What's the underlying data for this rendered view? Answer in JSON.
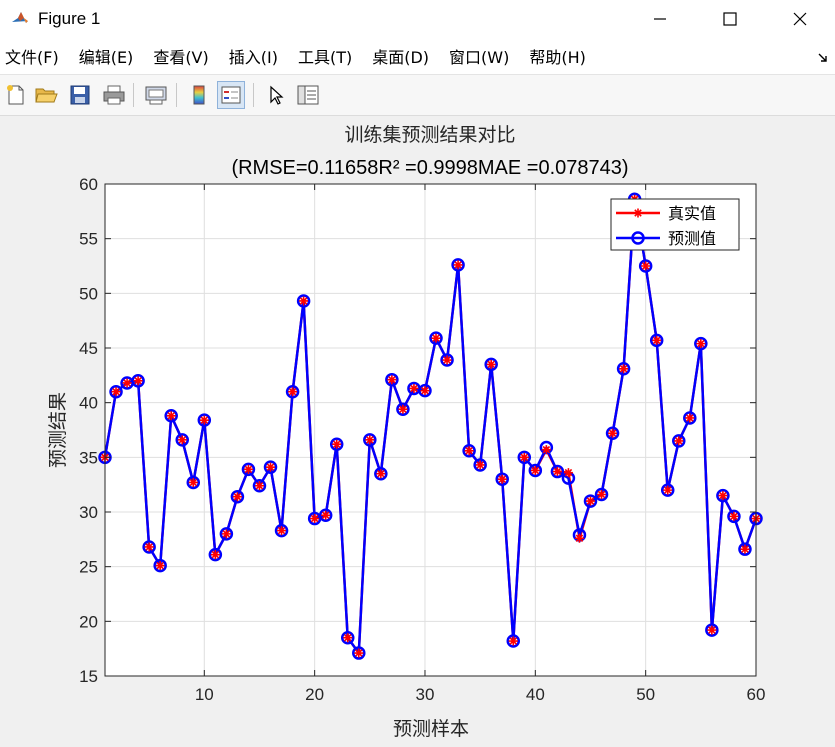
{
  "window": {
    "title": "Figure 1"
  },
  "menu": [
    "文件(F)",
    "编辑(E)",
    "查看(V)",
    "插入(I)",
    "工具(T)",
    "桌面(D)",
    "窗口(W)",
    "帮助(H)"
  ],
  "toolbar": {
    "icons": [
      "new-file-icon",
      "open-folder-icon",
      "save-icon",
      "print-icon",
      "print-preview-icon",
      "colorbar-icon",
      "legend-icon",
      "pointer-icon",
      "property-inspector-icon"
    ]
  },
  "chart_data": {
    "type": "line",
    "title": "训练集预测结果对比",
    "subtitle": "(RMSE=0.11658R² =0.9998MAE =0.078743)",
    "xlabel": "预测样本",
    "ylabel": "预测结果",
    "xlim": [
      1,
      60
    ],
    "ylim": [
      15,
      60
    ],
    "xticks": [
      10,
      20,
      30,
      40,
      50,
      60
    ],
    "yticks": [
      15,
      20,
      25,
      30,
      35,
      40,
      45,
      50,
      55,
      60
    ],
    "grid": true,
    "legend_position": "top-right",
    "x": [
      1,
      2,
      3,
      4,
      5,
      6,
      7,
      8,
      9,
      10,
      11,
      12,
      13,
      14,
      15,
      16,
      17,
      18,
      19,
      20,
      21,
      22,
      23,
      24,
      25,
      26,
      27,
      28,
      29,
      30,
      31,
      32,
      33,
      34,
      35,
      36,
      37,
      38,
      39,
      40,
      41,
      42,
      43,
      44,
      45,
      46,
      47,
      48,
      49,
      50,
      51,
      52,
      53,
      54,
      55,
      56,
      57,
      58,
      59,
      60
    ],
    "series": [
      {
        "name": "真实值",
        "color": "#ff0000",
        "marker": "star",
        "values": [
          35.0,
          41.0,
          41.8,
          42.0,
          26.8,
          25.1,
          38.8,
          36.6,
          32.7,
          38.4,
          26.1,
          28.0,
          31.4,
          33.9,
          32.4,
          34.1,
          28.3,
          41.0,
          49.3,
          29.4,
          29.7,
          36.2,
          18.5,
          17.1,
          36.6,
          33.5,
          42.1,
          39.4,
          41.3,
          41.1,
          45.9,
          43.9,
          52.6,
          35.6,
          34.3,
          43.5,
          33.0,
          18.2,
          35.0,
          33.8,
          35.7,
          33.7,
          33.6,
          27.6,
          31.0,
          31.6,
          37.2,
          43.1,
          58.6,
          52.5,
          45.7,
          32.0,
          36.5,
          38.6,
          45.4,
          19.2,
          31.5,
          29.6,
          26.6,
          29.4
        ]
      },
      {
        "name": "预测值",
        "color": "#0000ff",
        "marker": "circle",
        "values": [
          35.0,
          41.0,
          41.8,
          42.0,
          26.8,
          25.1,
          38.8,
          36.6,
          32.7,
          38.4,
          26.1,
          28.0,
          31.4,
          33.9,
          32.4,
          34.1,
          28.3,
          41.0,
          49.3,
          29.4,
          29.7,
          36.2,
          18.5,
          17.1,
          36.6,
          33.5,
          42.1,
          39.4,
          41.3,
          41.1,
          45.9,
          43.9,
          52.6,
          35.6,
          34.3,
          43.5,
          33.0,
          18.2,
          35.0,
          33.8,
          35.9,
          33.7,
          33.1,
          27.9,
          31.0,
          31.6,
          37.2,
          43.1,
          58.6,
          52.5,
          45.7,
          32.0,
          36.5,
          38.6,
          45.4,
          19.2,
          31.5,
          29.6,
          26.6,
          29.4
        ]
      }
    ]
  }
}
